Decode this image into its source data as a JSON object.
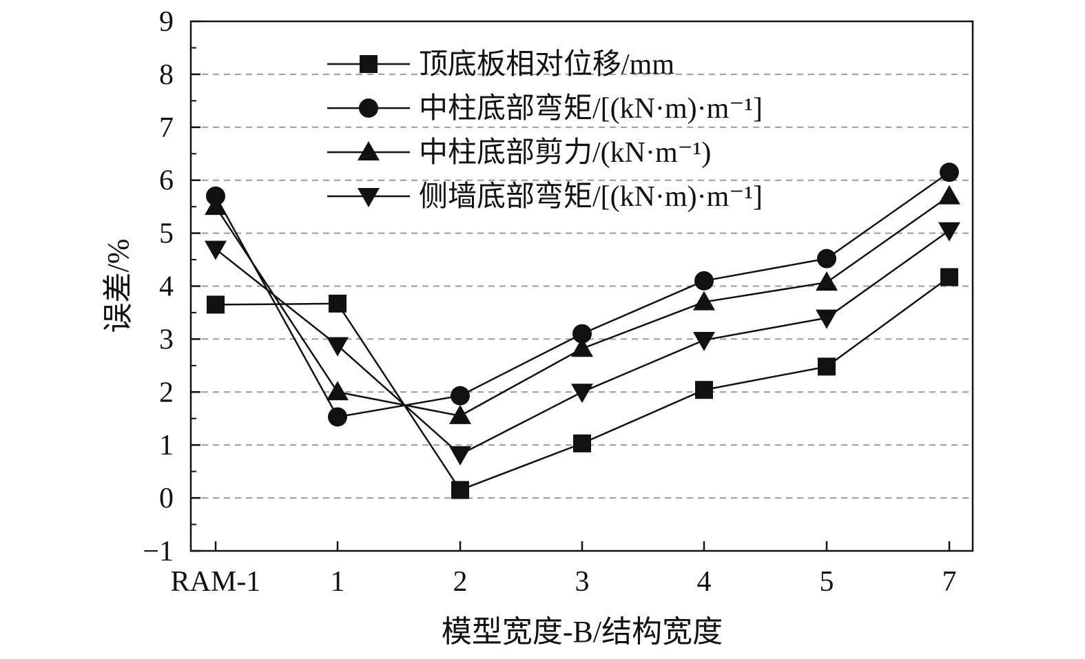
{
  "chart_data": {
    "type": "line",
    "xlabel": "模型宽度-B/结构宽度",
    "ylabel": "误差/%",
    "categories": [
      "RAM-1",
      "1",
      "2",
      "3",
      "4",
      "5",
      "7"
    ],
    "ylim": [
      -1,
      9
    ],
    "yticks": [
      "−1",
      "0",
      "1",
      "2",
      "3",
      "4",
      "5",
      "6",
      "7",
      "8",
      "9"
    ],
    "grid": "horizontal dashed",
    "legend_position": "top-left",
    "series": [
      {
        "name": "顶底板相对位移/mm",
        "marker": "square",
        "values": [
          3.65,
          3.67,
          0.15,
          1.03,
          2.04,
          2.48,
          4.17
        ]
      },
      {
        "name": "中柱底部弯矩/[(kN·m)·m⁻¹]",
        "marker": "circle",
        "values": [
          5.7,
          1.53,
          1.93,
          3.1,
          4.1,
          4.52,
          6.15
        ]
      },
      {
        "name": "中柱底部剪力/(kN·m⁻¹)",
        "marker": "triangle-up",
        "values": [
          5.5,
          2.0,
          1.55,
          2.82,
          3.7,
          4.07,
          5.7
        ]
      },
      {
        "name": "侧墙底部弯矩/[(kN·m)·m⁻¹]",
        "marker": "triangle-down",
        "values": [
          4.7,
          2.88,
          0.82,
          2.0,
          2.98,
          3.4,
          5.05
        ]
      }
    ],
    "colors": {
      "line": "#111111",
      "grid": "#999999",
      "frame": "#111111"
    }
  }
}
